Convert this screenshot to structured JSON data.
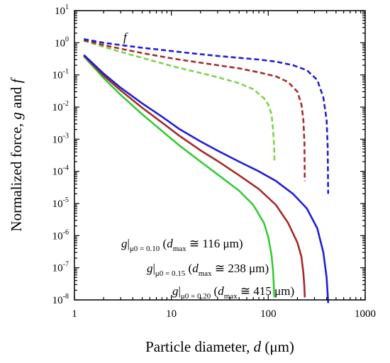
{
  "chart_data": {
    "type": "line",
    "xlabel": {
      "main": "Particle diameter, ",
      "var": "d",
      "unit": " (μm)"
    },
    "ylabel": {
      "main": "Normalized force, ",
      "var1": "g",
      "mid": " and ",
      "var2": "f"
    },
    "x_scale": "log",
    "y_scale": "log",
    "xlim": [
      1,
      1000
    ],
    "ylim": [
      1e-08,
      10
    ],
    "x_ticks": [
      "1",
      "10",
      "100",
      "1000"
    ],
    "y_ticks": [
      {
        "base": "10",
        "exp": "1"
      },
      {
        "base": "10",
        "exp": "0"
      },
      {
        "base": "10",
        "exp": "-1"
      },
      {
        "base": "10",
        "exp": "-2"
      },
      {
        "base": "10",
        "exp": "-3"
      },
      {
        "base": "10",
        "exp": "-4"
      },
      {
        "base": "10",
        "exp": "-5"
      },
      {
        "base": "10",
        "exp": "-6"
      },
      {
        "base": "10",
        "exp": "-7"
      },
      {
        "base": "10",
        "exp": "-8"
      }
    ],
    "grid": false,
    "colors": {
      "mu010": "#33cc33",
      "mu015": "#a52a2a",
      "mu020": "#1f1fd6"
    },
    "series": [
      {
        "name": "f (μ0 = 0.10)",
        "style": "dashed",
        "color": "#7fd24a",
        "x": [
          1.25,
          2,
          3,
          5,
          8,
          12,
          20,
          30,
          50,
          70,
          90,
          100,
          108,
          112,
          115,
          116
        ],
        "y": [
          1.15,
          0.75,
          0.52,
          0.34,
          0.23,
          0.165,
          0.115,
          0.085,
          0.055,
          0.036,
          0.019,
          0.012,
          0.006,
          0.002,
          0.0006,
          0.0002
        ]
      },
      {
        "name": "f (μ0 = 0.15)",
        "style": "dashed",
        "color": "#a52a2a",
        "x": [
          1.25,
          2,
          3,
          5,
          8,
          12,
          20,
          30,
          50,
          80,
          120,
          160,
          200,
          220,
          230,
          236,
          238
        ],
        "y": [
          1.2,
          0.85,
          0.65,
          0.48,
          0.37,
          0.3,
          0.24,
          0.2,
          0.16,
          0.12,
          0.09,
          0.06,
          0.03,
          0.012,
          0.004,
          0.0008,
          5e-05
        ]
      },
      {
        "name": "f (μ0 = 0.20)",
        "style": "dashed",
        "color": "#1f1fd6",
        "x": [
          1.25,
          2,
          3,
          5,
          8,
          12,
          20,
          30,
          50,
          80,
          120,
          180,
          250,
          320,
          370,
          400,
          410,
          415
        ],
        "y": [
          1.3,
          1.0,
          0.85,
          0.7,
          0.6,
          0.52,
          0.44,
          0.39,
          0.34,
          0.3,
          0.26,
          0.2,
          0.14,
          0.07,
          0.02,
          0.004,
          0.0006,
          2e-05
        ]
      },
      {
        "name": "g (μ0 = 0.10)",
        "style": "solid",
        "color": "#33cc33",
        "x": [
          1.25,
          2,
          3,
          5,
          8,
          12,
          20,
          30,
          50,
          70,
          90,
          100,
          108,
          112,
          114,
          115,
          116
        ],
        "y": [
          0.38,
          0.08,
          0.024,
          0.006,
          0.0018,
          0.00065,
          0.0002,
          8e-05,
          2.5e-05,
          9e-06,
          2.5e-06,
          9e-07,
          2.5e-07,
          8e-08,
          3e-08,
          1.5e-08,
          1.2e-08
        ]
      },
      {
        "name": "g (μ0 = 0.15)",
        "style": "solid",
        "color": "#a52a2a",
        "x": [
          1.25,
          2,
          3,
          5,
          8,
          12,
          20,
          30,
          50,
          80,
          120,
          160,
          200,
          220,
          230,
          236,
          238
        ],
        "y": [
          0.4,
          0.095,
          0.033,
          0.0095,
          0.0033,
          0.0013,
          0.00045,
          0.00021,
          7.5e-05,
          2.8e-05,
          9e-06,
          2.5e-06,
          6e-07,
          2.2e-07,
          7e-08,
          2.5e-08,
          1.2e-08
        ]
      },
      {
        "name": "g (μ0 = 0.20)",
        "style": "solid",
        "color": "#1f1fd6",
        "x": [
          1.25,
          2,
          3,
          5,
          8,
          12,
          20,
          30,
          50,
          80,
          120,
          180,
          250,
          320,
          370,
          400,
          410,
          415
        ],
        "y": [
          0.42,
          0.11,
          0.04,
          0.013,
          0.005,
          0.0021,
          0.00085,
          0.00044,
          0.0002,
          0.0001,
          5e-05,
          2e-05,
          7e-06,
          1.7e-06,
          3e-07,
          5e-08,
          1.5e-08,
          8e-09
        ]
      }
    ],
    "annotations": {
      "f_label": "f",
      "g010": {
        "var": "g",
        "bar": "|",
        "sub": "μ0 = 0.10",
        "dmax": "d",
        "dmax_sub": "max",
        "text": " ≅ 116 μm)",
        "open": " ("
      },
      "g015": {
        "var": "g",
        "bar": "|",
        "sub": "μ0 = 0.15",
        "dmax": "d",
        "dmax_sub": "max",
        "text": " ≅ 238 μm)",
        "open": " ("
      },
      "g020": {
        "var": "g",
        "bar": "|",
        "sub": "μ0 = 0.20",
        "dmax": "d",
        "dmax_sub": "max",
        "text": " ≅ 415 μm)",
        "open": " ("
      }
    }
  }
}
